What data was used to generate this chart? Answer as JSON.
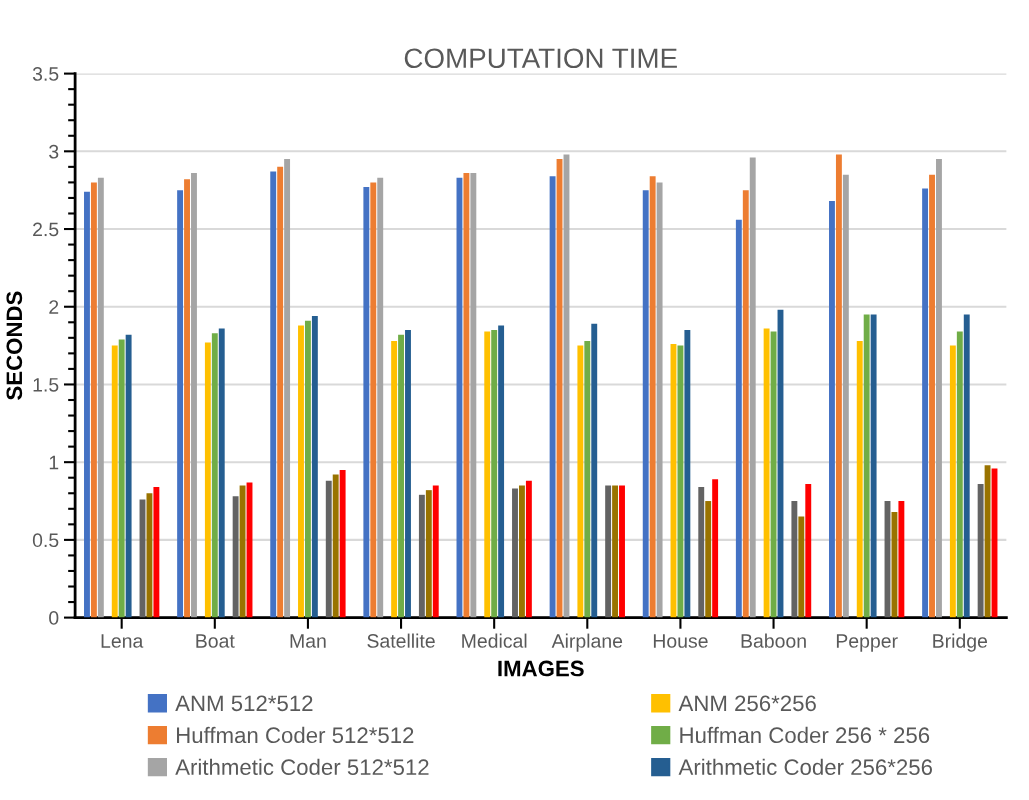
{
  "chart_data": {
    "type": "bar",
    "title": "COMPUTATION TIME",
    "xlabel": "IMAGES",
    "ylabel": "SECONDS",
    "categories": [
      "Lena",
      "Boat",
      "Man",
      "Satellite",
      "Medical",
      "Airplane",
      "House",
      "Baboon",
      "Pepper",
      "Bridge"
    ],
    "series": [
      {
        "name": "ANM 512*512",
        "color": "#4472c4",
        "values": [
          2.74,
          2.75,
          2.87,
          2.77,
          2.83,
          2.84,
          2.75,
          2.56,
          2.68,
          2.76
        ]
      },
      {
        "name": "Huffman Coder 512*512",
        "color": "#ed7d31",
        "values": [
          2.8,
          2.82,
          2.9,
          2.8,
          2.86,
          2.95,
          2.84,
          2.75,
          2.98,
          2.85
        ]
      },
      {
        "name": "Arithmetic Coder 512*512",
        "color": "#a5a5a5",
        "values": [
          2.83,
          2.86,
          2.95,
          2.83,
          2.86,
          2.98,
          2.8,
          2.96,
          2.85,
          2.95
        ]
      },
      {
        "name": "ANM 256*256",
        "color": "#ffc000",
        "values": [
          1.75,
          1.77,
          1.88,
          1.78,
          1.84,
          1.75,
          1.76,
          1.86,
          1.78,
          1.75
        ]
      },
      {
        "name": "Huffman Coder 256 * 256",
        "color": "#70ad47",
        "values": [
          1.79,
          1.83,
          1.91,
          1.82,
          1.85,
          1.78,
          1.75,
          1.84,
          1.95,
          1.84
        ]
      },
      {
        "name": "Arithmetic Coder 256*256",
        "color": "#255e91",
        "values": [
          1.82,
          1.86,
          1.94,
          1.85,
          1.88,
          1.89,
          1.85,
          1.98,
          1.95,
          1.95
        ]
      },
      {
        "color": "#636363",
        "values": [
          0.76,
          0.78,
          0.88,
          0.79,
          0.83,
          0.85,
          0.84,
          0.75,
          0.75,
          0.86
        ]
      },
      {
        "color": "#997300",
        "values": [
          0.8,
          0.85,
          0.92,
          0.82,
          0.85,
          0.85,
          0.75,
          0.65,
          0.68,
          0.98
        ]
      },
      {
        "color": "#ff0000",
        "values": [
          0.84,
          0.87,
          0.95,
          0.85,
          0.88,
          0.85,
          0.89,
          0.86,
          0.75,
          0.96
        ]
      }
    ],
    "ylim": [
      0,
      3.5
    ],
    "yticks": [
      0,
      0.5,
      1,
      1.5,
      2,
      2.5,
      3,
      3.5
    ],
    "grid": "y",
    "legend": "bottom"
  }
}
